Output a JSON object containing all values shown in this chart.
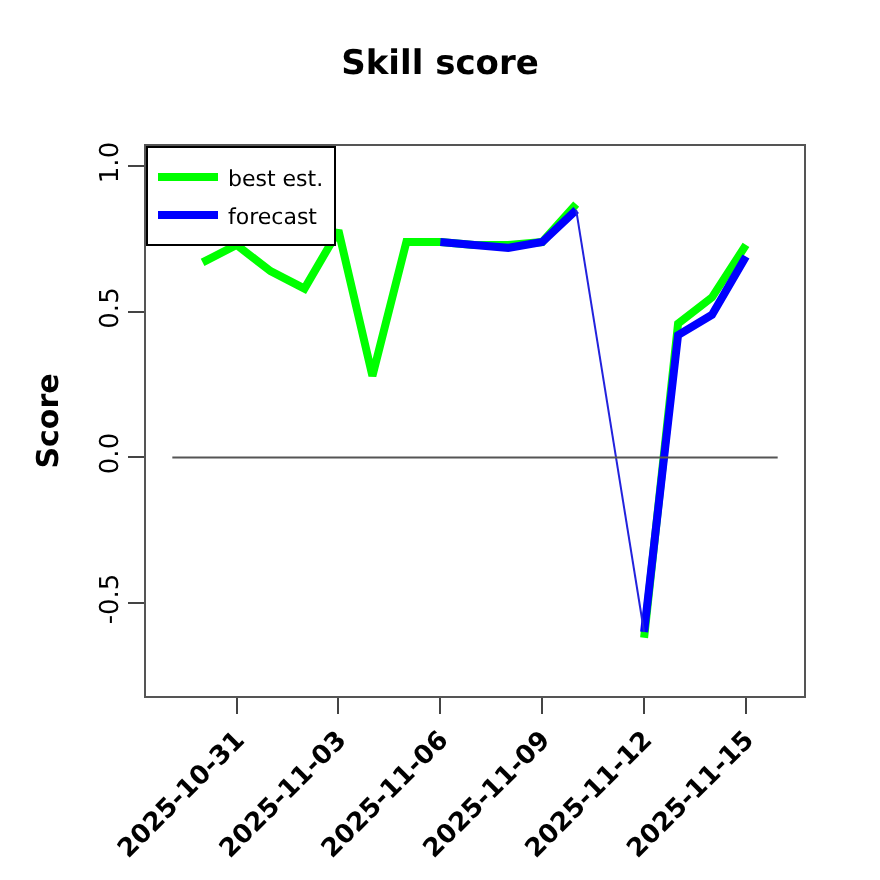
{
  "chart_data": {
    "type": "line",
    "title": "Skill score",
    "ylabel": "Score",
    "xlim": [
      "2025-10-28T08:00",
      "2025-11-16T17:00"
    ],
    "xticks": [
      "2025-10-31",
      "2025-11-03",
      "2025-11-06",
      "2025-11-09",
      "2025-11-12",
      "2025-11-15"
    ],
    "ylim": [
      -0.82,
      1.07
    ],
    "yticks": [
      {
        "value": -0.5,
        "label": "-0.5"
      },
      {
        "value": 0,
        "label": "0.0"
      },
      {
        "value": 0.5,
        "label": "0.5"
      },
      {
        "value": 1,
        "label": "1.0"
      }
    ],
    "series": [
      {
        "name": "best est.",
        "color": "#00ff00",
        "x": [
          "2025-10-30",
          "2025-10-31",
          "2025-11-01",
          "2025-11-02",
          "2025-11-03",
          "2025-11-04",
          "2025-11-05",
          "2025-11-06",
          "2025-11-07",
          "2025-11-08",
          "2025-11-09",
          "2025-11-10",
          "2025-11-11",
          "2025-11-12",
          "2025-11-13",
          "2025-11-14",
          "2025-11-15"
        ],
        "values": [
          0.67,
          0.73,
          0.64,
          0.58,
          0.78,
          0.28,
          0.74,
          0.74,
          0.73,
          0.73,
          0.74,
          0.87,
          null,
          -0.62,
          0.46,
          0.55,
          0.73
        ]
      },
      {
        "name": "forecast",
        "color": "#0000ff",
        "x": [
          "2025-11-06",
          "2025-11-07",
          "2025-11-08",
          "2025-11-09",
          "2025-11-10",
          "2025-11-11",
          "2025-11-12",
          "2025-11-13",
          "2025-11-14",
          "2025-11-15"
        ],
        "values": [
          0.74,
          0.73,
          0.72,
          0.74,
          0.85,
          null,
          -0.6,
          0.42,
          0.49,
          0.69
        ]
      },
      {
        "color": "#2222dd",
        "x": [
          "2025-11-10",
          "2025-11-12"
        ],
        "values": [
          0.85,
          -0.6
        ]
      }
    ],
    "ref_lines": [
      {
        "axis": "y",
        "value": 0,
        "color": "#555555"
      }
    ],
    "grid": false,
    "legend": "top left",
    "line_style": "solid"
  }
}
